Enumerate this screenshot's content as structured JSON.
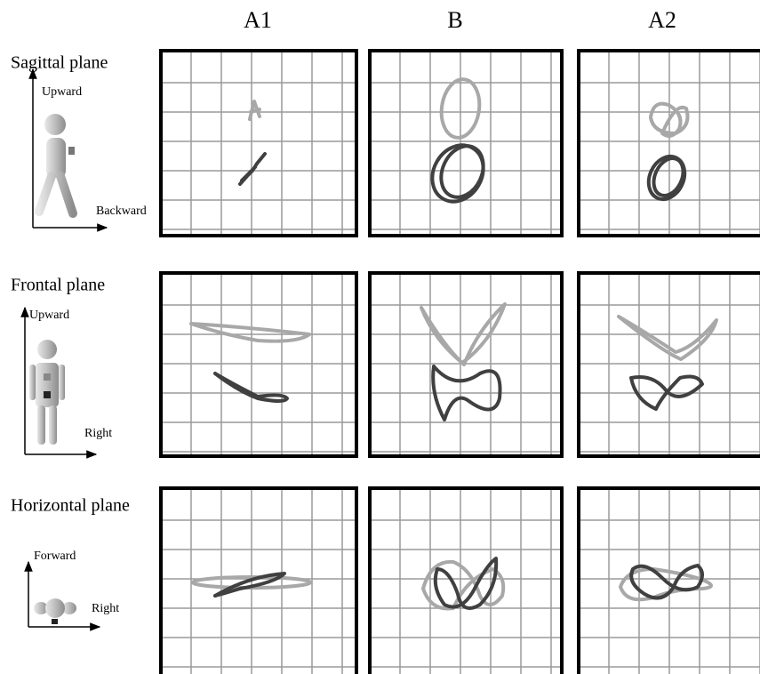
{
  "columns": [
    "A1",
    "B",
    "A2"
  ],
  "rows": [
    {
      "label": "Sagittal plane",
      "vertical_axis": "Upward",
      "horizontal_axis": "Backward"
    },
    {
      "label": "Frontal plane",
      "vertical_axis": "Upward",
      "horizontal_axis": "Right"
    },
    {
      "label": "Horizontal plane",
      "vertical_axis": "Forward",
      "horizontal_axis": "Right"
    }
  ]
}
